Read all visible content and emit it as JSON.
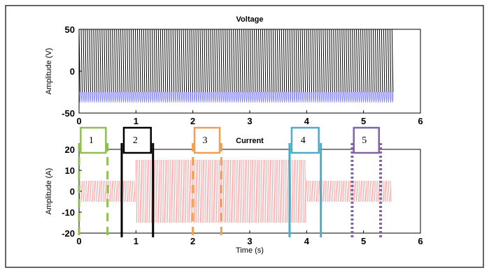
{
  "chart_data": [
    {
      "type": "line",
      "title": "Voltage",
      "xlabel": "",
      "ylabel": "Amplitude (V)",
      "xlim": [
        0,
        6
      ],
      "ylim": [
        -50,
        50
      ],
      "x_ticks": [
        "0",
        "1",
        "2",
        "3",
        "4",
        "5",
        "6"
      ],
      "y_ticks": [
        "50",
        "0",
        "-50"
      ],
      "colors": {
        "upper": "#000000",
        "lower": "#8080ff"
      },
      "series": [
        {
          "kind": "oscillation",
          "t_start": 0,
          "t_end": 5.5,
          "upper_envelope": 50,
          "lower_envelope": -25,
          "blue_band": [
            -50,
            -25
          ]
        }
      ]
    },
    {
      "type": "line",
      "title": "Current",
      "xlabel": "Time (s)",
      "ylabel": "Amplitude (A)",
      "xlim": [
        0,
        6
      ],
      "ylim": [
        -20,
        20
      ],
      "x_ticks": [
        "0",
        "1",
        "2",
        "3",
        "4",
        "5",
        "6"
      ],
      "y_ticks": [
        "20",
        "10",
        "0",
        "-10",
        "-20"
      ],
      "colors": {
        "signal": "#ff8080"
      },
      "series": [
        {
          "kind": "oscillation",
          "segments": [
            {
              "t_start": 0,
              "t_end": 1.0,
              "amplitude": 5
            },
            {
              "t_start": 1.0,
              "t_end": 4.0,
              "amplitude": 15
            },
            {
              "t_start": 4.0,
              "t_end": 5.5,
              "amplitude": 5
            }
          ]
        }
      ]
    }
  ],
  "segments": [
    {
      "label": "1",
      "t_start": 0.0,
      "t_end": 0.5,
      "color": "#92bd52",
      "style": "dashed"
    },
    {
      "label": "2",
      "t_start": 0.75,
      "t_end": 1.3,
      "color": "#000000",
      "style": "solid"
    },
    {
      "label": "3",
      "t_start": 2.0,
      "t_end": 2.5,
      "color": "#f0a050",
      "style": "dashed"
    },
    {
      "label": "4",
      "t_start": 3.7,
      "t_end": 4.25,
      "color": "#4aacc6",
      "style": "solid"
    },
    {
      "label": "5",
      "t_start": 4.8,
      "t_end": 5.3,
      "color": "#8064a2",
      "style": "dotted"
    }
  ]
}
